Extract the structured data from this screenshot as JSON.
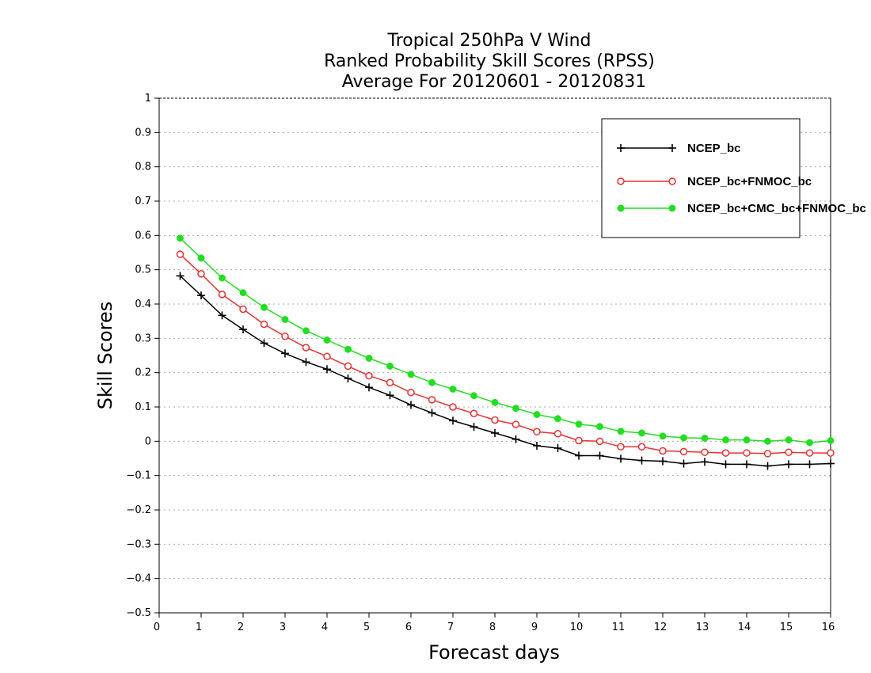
{
  "chart_data": {
    "type": "line",
    "title_lines": [
      "Tropical 250hPa V Wind",
      "Ranked Probability Skill Scores (RPSS)",
      "Average For 20120601 - 20120831"
    ],
    "xlabel": "Forecast days",
    "ylabel": "Skill Scores",
    "xlim": [
      0,
      16
    ],
    "ylim": [
      -0.5,
      1
    ],
    "x_ticks": [
      0,
      1,
      2,
      3,
      4,
      5,
      6,
      7,
      8,
      9,
      10,
      11,
      12,
      13,
      14,
      15,
      16
    ],
    "x_tick_labels": [
      "0",
      "1",
      "2",
      "3",
      "4",
      "5",
      "6",
      "7",
      "8",
      "9",
      "10",
      "11",
      "12",
      "13",
      "14",
      "15",
      "16"
    ],
    "y_ticks": [
      -0.5,
      -0.4,
      -0.3,
      -0.2,
      -0.1,
      0,
      0.1,
      0.2,
      0.3,
      0.4,
      0.5,
      0.6,
      0.7,
      0.8,
      0.9,
      1
    ],
    "y_tick_labels": [
      "−0.5",
      "−0.4",
      "−0.3",
      "−0.2",
      "−0.1",
      "0",
      "0.1",
      "0.2",
      "0.3",
      "0.4",
      "0.5",
      "0.6",
      "0.7",
      "0.8",
      "0.9",
      "1"
    ],
    "grid": true,
    "legend_position": "top-right",
    "x": [
      0.5,
      1,
      1.5,
      2,
      2.5,
      3,
      3.5,
      4,
      4.5,
      5,
      5.5,
      6,
      6.5,
      7,
      7.5,
      8,
      8.5,
      9,
      9.5,
      10,
      10.5,
      11,
      11.5,
      12,
      12.5,
      13,
      13.5,
      14,
      14.5,
      15,
      15.5,
      16
    ],
    "series": [
      {
        "name": "NCEP_bc",
        "color": "#000000",
        "marker": "plus",
        "values": [
          0.482,
          0.425,
          0.367,
          0.326,
          0.286,
          0.256,
          0.231,
          0.21,
          0.183,
          0.157,
          0.134,
          0.106,
          0.083,
          0.06,
          0.042,
          0.024,
          0.006,
          -0.013,
          -0.02,
          -0.042,
          -0.042,
          -0.051,
          -0.056,
          -0.058,
          -0.065,
          -0.06,
          -0.067,
          -0.067,
          -0.072,
          -0.067,
          -0.067,
          -0.065
        ]
      },
      {
        "name": "NCEP_bc+FNMOC_bc",
        "color": "#e83030",
        "marker": "open-circle",
        "values": [
          0.545,
          0.488,
          0.428,
          0.385,
          0.341,
          0.306,
          0.273,
          0.247,
          0.219,
          0.191,
          0.171,
          0.142,
          0.121,
          0.1,
          0.081,
          0.062,
          0.049,
          0.028,
          0.022,
          0.002,
          0.0,
          -0.016,
          -0.016,
          -0.028,
          -0.03,
          -0.032,
          -0.034,
          -0.034,
          -0.036,
          -0.032,
          -0.034,
          -0.034
        ]
      },
      {
        "name": "NCEP_bc+CMC_bc+FNMOC_bc",
        "color": "#22dd22",
        "marker": "filled-circle",
        "values": [
          0.592,
          0.534,
          0.476,
          0.433,
          0.39,
          0.355,
          0.322,
          0.295,
          0.268,
          0.242,
          0.219,
          0.195,
          0.171,
          0.152,
          0.133,
          0.113,
          0.096,
          0.078,
          0.066,
          0.05,
          0.043,
          0.029,
          0.024,
          0.015,
          0.01,
          0.009,
          0.004,
          0.004,
          0.0,
          0.004,
          -0.004,
          0.002
        ]
      }
    ]
  }
}
